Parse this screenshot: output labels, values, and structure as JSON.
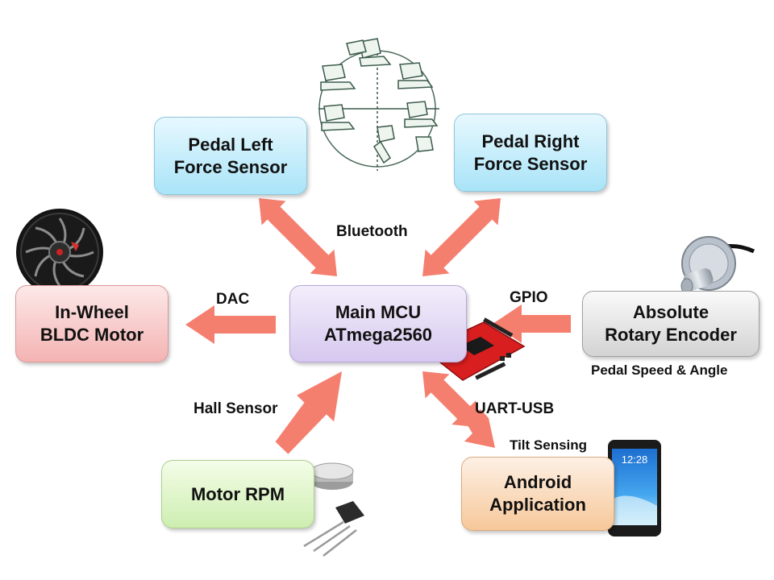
{
  "nodes": {
    "pedal_left": {
      "line1": "Pedal Left",
      "line2": "Force Sensor"
    },
    "pedal_right": {
      "line1": "Pedal Right",
      "line2": "Force Sensor"
    },
    "mcu": {
      "line1": "Main MCU",
      "line2": "ATmega2560"
    },
    "motor": {
      "line1": "In-Wheel",
      "line2": "BLDC Motor"
    },
    "encoder": {
      "line1": "Absolute",
      "line2": "Rotary Encoder"
    },
    "rpm": {
      "line1": "Motor RPM"
    },
    "android": {
      "line1": "Android",
      "line2": "Application"
    }
  },
  "edges": {
    "bluetooth": "Bluetooth",
    "dac": "DAC",
    "gpio": "GPIO",
    "hall": "Hall Sensor",
    "uart": "UART-USB"
  },
  "annotations": {
    "pedal_speed": "Pedal Speed & Angle",
    "tilt": "Tilt Sensing"
  },
  "phone": {
    "clock": "12:28"
  },
  "colors": {
    "arrow": "#f57f6f",
    "pedal_box": "#bfeafa",
    "mcu_box": "#e2d8f4",
    "motor_box": "#f9cccc",
    "encoder_box": "#e4e4e4",
    "rpm_box": "#ddf5c8",
    "android_box": "#fad9b8",
    "board": "#d81e1e"
  }
}
